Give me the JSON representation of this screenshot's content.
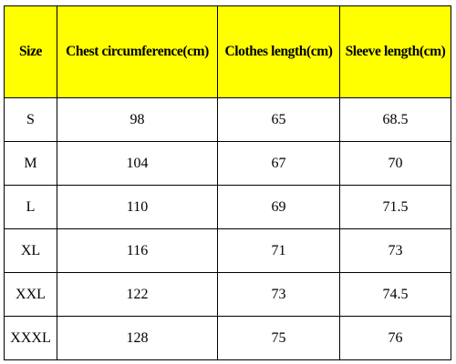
{
  "table": {
    "header_color": "#ffff00",
    "headers": [
      "Size",
      "Chest circumference(cm)",
      "Clothes length(cm)",
      "Sleeve length(cm)"
    ],
    "rows": [
      [
        "S",
        "98",
        "65",
        "68.5"
      ],
      [
        "M",
        "104",
        "67",
        "70"
      ],
      [
        "L",
        "110",
        "69",
        "71.5"
      ],
      [
        "XL",
        "116",
        "71",
        "73"
      ],
      [
        "XXL",
        "122",
        "73",
        "74.5"
      ],
      [
        "XXXL",
        "128",
        "75",
        "76"
      ]
    ]
  }
}
